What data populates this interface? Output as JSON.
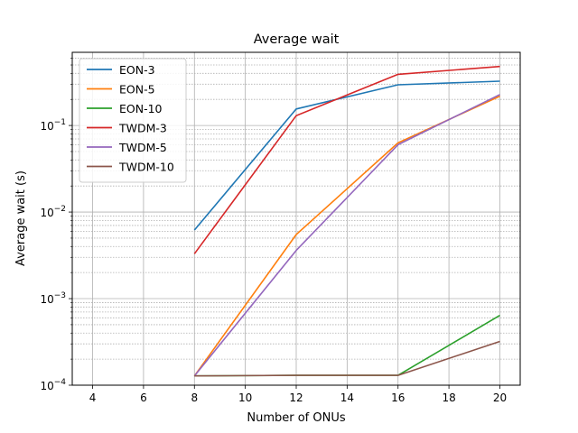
{
  "chart_data": {
    "type": "line",
    "title": "Average wait",
    "xlabel": "Number of ONUs",
    "ylabel": "Average wait (s)",
    "x_scale": "linear",
    "y_scale": "log",
    "xlim": [
      3.2,
      20.8
    ],
    "ylim": [
      0.0001,
      0.7
    ],
    "x_ticks": [
      4,
      6,
      8,
      10,
      12,
      14,
      16,
      18,
      20
    ],
    "y_ticks": [
      {
        "value": 0.0001,
        "base": "10",
        "exp": "−4"
      },
      {
        "value": 0.001,
        "base": "10",
        "exp": "−3"
      },
      {
        "value": 0.01,
        "base": "10",
        "exp": "−2"
      },
      {
        "value": 0.1,
        "base": "10",
        "exp": "−1"
      }
    ],
    "grid": true,
    "legend_position": "top-left",
    "x": [
      8,
      12,
      16,
      20
    ],
    "series": [
      {
        "name": "EON-3",
        "color": "#1f77b4",
        "values": [
          0.0062,
          0.155,
          0.295,
          0.325
        ]
      },
      {
        "name": "EON-5",
        "color": "#ff7f0e",
        "values": [
          0.000128,
          0.0055,
          0.063,
          0.218
        ]
      },
      {
        "name": "EON-10",
        "color": "#2ca02c",
        "values": [
          0.000128,
          0.00013,
          0.00013,
          0.00064
        ]
      },
      {
        "name": "TWDM-3",
        "color": "#d62728",
        "values": [
          0.0033,
          0.13,
          0.39,
          0.48
        ]
      },
      {
        "name": "TWDM-5",
        "color": "#9467bd",
        "values": [
          0.000128,
          0.0036,
          0.06,
          0.228
        ]
      },
      {
        "name": "TWDM-10",
        "color": "#8c564b",
        "values": [
          0.000128,
          0.00013,
          0.00013,
          0.00032
        ]
      }
    ]
  }
}
